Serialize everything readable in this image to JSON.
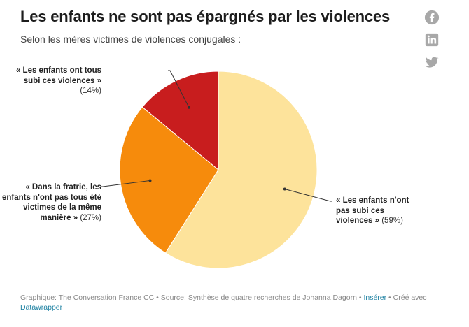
{
  "header": {
    "title": "Les enfants ne sont pas épargnés par les violences",
    "subtitle": "Selon les mères victimes de violences conjugales :"
  },
  "share": {
    "icons": [
      "facebook-icon",
      "linkedin-icon",
      "twitter-icon"
    ],
    "color": "#a8a8a8"
  },
  "chart_data": {
    "type": "pie",
    "slices": [
      {
        "label": "« Les enfants n'ont pas subi ces violences »",
        "pct_text": "(59%)",
        "value": 59,
        "color": "#fde39b"
      },
      {
        "label": "« Dans la fratrie, les enfants n'ont pas tous été victimes de la même manière »",
        "pct_text": "(27%)",
        "value": 27,
        "color": "#f68b0c"
      },
      {
        "label": "« Les enfants ont tous subi ces violences »",
        "pct_text": "(14%)",
        "value": 14,
        "color": "#c81d1e"
      }
    ]
  },
  "footer": {
    "credit": "Graphique: The Conversation France CC • Source: Synthèse de quatre recherches de Johanna Dagorn • ",
    "insert_link": "Insérer",
    "created_with": " • Créé avec ",
    "datawrapper_link": "Datawrapper"
  }
}
